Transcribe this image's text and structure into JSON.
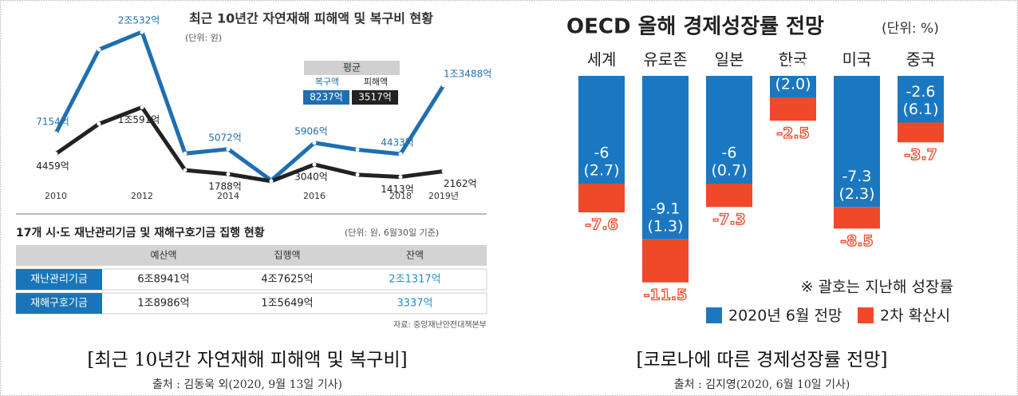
{
  "chart_data": [
    {
      "type": "line",
      "title": "최근 10년간 자연재해 피해액 및 복구비 현황",
      "subtitle": "(단위: 원)",
      "categories": [
        "2010",
        null,
        "2012",
        null,
        "2014",
        null,
        "2016",
        null,
        "2018",
        "2019년"
      ],
      "average_title": "평균",
      "series": [
        {
          "name": "복구액",
          "color": "#1f6fb0",
          "average_label": "8237억",
          "values": [
            7154,
            18200,
            20532,
            4500,
            5072,
            950,
            5906,
            5000,
            4433,
            13488
          ],
          "value_labels": [
            "7154억",
            null,
            "2조532억",
            null,
            "5072억",
            null,
            "5906억",
            null,
            "4433억",
            "1조3488억"
          ]
        },
        {
          "name": "피해액",
          "color": "#222222",
          "average_label": "3517억",
          "values": [
            4459,
            8400,
            10591,
            2300,
            1788,
            850,
            3040,
            1700,
            1413,
            2162
          ],
          "value_labels": [
            "4459억",
            null,
            "1조591억",
            null,
            "1788억",
            null,
            "3040억",
            null,
            "1413억",
            "2162억"
          ]
        }
      ]
    },
    {
      "type": "bar",
      "title": "OECD 올해 경제성장률 전망",
      "subtitle": "(단위: %)",
      "categories": [
        "세계",
        "유로존",
        "일본",
        "한국",
        "미국",
        "중국"
      ],
      "series": [
        {
          "name": "2020년 6월 전망",
          "color": "#1a78c2",
          "values": [
            -6,
            -9.1,
            -6,
            -1.2,
            -7.3,
            -2.6
          ],
          "prev_year": [
            2.7,
            1.3,
            0.7,
            2.0,
            2.3,
            6.1
          ],
          "prev_year_labels": [
            "(2.7)",
            "(1.3)",
            "(0.7)",
            "(2.0)",
            "(2.3)",
            "(6.1)"
          ]
        },
        {
          "name": "2차 확산시",
          "color": "#ee4a2a",
          "values": [
            -7.6,
            -11.5,
            -7.3,
            -2.5,
            -8.5,
            -3.7
          ]
        }
      ],
      "note": "※ 괄호는 지난해 성장률"
    }
  ],
  "table": {
    "title": "17개 시·도 재난관리기금 및 재해구호기금 집행 현황",
    "unit": "(단위: 원, 6월30일 기준)",
    "headers": [
      "예산액",
      "집행액",
      "잔액"
    ],
    "rows": [
      [
        "재난관리기금",
        "6조8941억",
        "4조7625억",
        "2조1317억"
      ],
      [
        "재해구호기금",
        "1조8986억",
        "1조5649억",
        "3337억"
      ]
    ],
    "source": "자료: 중앙재난안전대책본부"
  },
  "captions": [
    {
      "title": "[최근 10년간 자연재해 피해액 및 복구비]",
      "source": "출처 : 김동욱 외(2020, 9월 13일 기사)"
    },
    {
      "title": "[코로나에 따른 경제성장률 전망]",
      "source": "출처 : 김지영(2020, 6월 10일 기사)"
    }
  ]
}
